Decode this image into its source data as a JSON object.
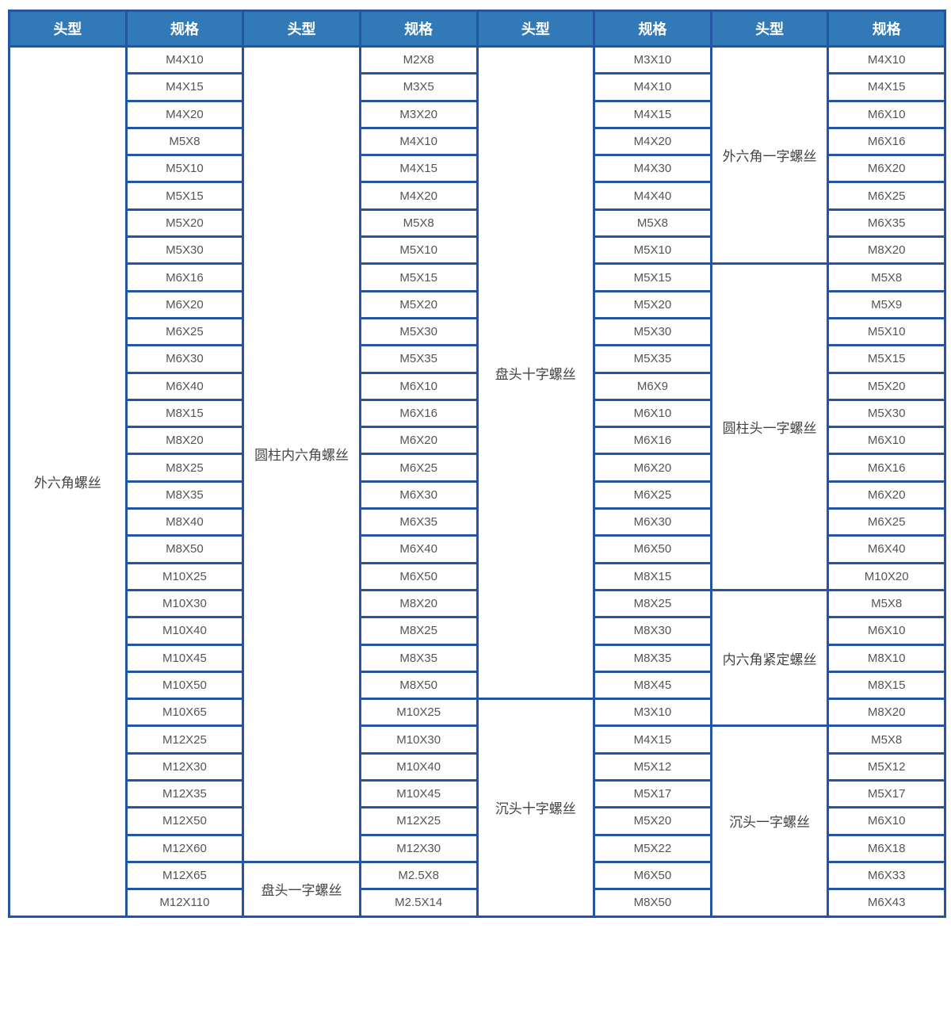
{
  "headers": [
    "头型",
    "规格",
    "头型",
    "规格",
    "头型",
    "规格",
    "头型",
    "规格"
  ],
  "colors": {
    "header_bg": "#3279b8",
    "border": "#2455a4"
  },
  "groups": [
    {
      "types": [
        {
          "name": "外六角螺丝",
          "rows": 32
        }
      ],
      "specs": [
        "M4X10",
        "M4X15",
        "M4X20",
        "M5X8",
        "M5X10",
        "M5X15",
        "M5X20",
        "M5X30",
        "M6X16",
        "M6X20",
        "M6X25",
        "M6X30",
        "M6X40",
        "M8X15",
        "M8X20",
        "M8X25",
        "M8X35",
        "M8X40",
        "M8X50",
        "M10X25",
        "M10X30",
        "M10X40",
        "M10X45",
        "M10X50",
        "M10X65",
        "M12X25",
        "M12X30",
        "M12X35",
        "M12X50",
        "M12X60",
        "M12X65",
        "M12X110"
      ]
    },
    {
      "types": [
        {
          "name": "圆柱内六角螺丝",
          "rows": 30
        },
        {
          "name": "盘头一字螺丝",
          "rows": 2
        }
      ],
      "specs": [
        "M2X8",
        "M3X5",
        "M3X20",
        "M4X10",
        "M4X15",
        "M4X20",
        "M5X8",
        "M5X10",
        "M5X15",
        "M5X20",
        "M5X30",
        "M5X35",
        "M6X10",
        "M6X16",
        "M6X20",
        "M6X25",
        "M6X30",
        "M6X35",
        "M6X40",
        "M6X50",
        "M8X20",
        "M8X25",
        "M8X35",
        "M8X50",
        "M10X25",
        "M10X30",
        "M10X40",
        "M10X45",
        "M12X25",
        "M12X30",
        "M2.5X8",
        "M2.5X14"
      ]
    },
    {
      "types": [
        {
          "name": "盘头十字螺丝",
          "rows": 24
        },
        {
          "name": "沉头十字螺丝",
          "rows": 8
        }
      ],
      "specs": [
        "M3X10",
        "M4X10",
        "M4X15",
        "M4X20",
        "M4X30",
        "M4X40",
        "M5X8",
        "M5X10",
        "M5X15",
        "M5X20",
        "M5X30",
        "M5X35",
        "M6X9",
        "M6X10",
        "M6X16",
        "M6X20",
        "M6X25",
        "M6X30",
        "M6X50",
        "M8X15",
        "M8X25",
        "M8X30",
        "M8X35",
        "M8X45",
        "M3X10",
        "M4X15",
        "M5X12",
        "M5X17",
        "M5X20",
        "M5X22",
        "M6X50",
        "M8X50"
      ]
    },
    {
      "types": [
        {
          "name": "外六角一字螺丝",
          "rows": 8
        },
        {
          "name": "圆柱头一字螺丝",
          "rows": 12
        },
        {
          "name": "内六角紧定螺丝",
          "rows": 5
        },
        {
          "name": "沉头一字螺丝",
          "rows": 7
        }
      ],
      "specs": [
        "M4X10",
        "M4X15",
        "M6X10",
        "M6X16",
        "M6X20",
        "M6X25",
        "M6X35",
        "M8X20",
        "M5X8",
        "M5X9",
        "M5X10",
        "M5X15",
        "M5X20",
        "M5X30",
        "M6X10",
        "M6X16",
        "M6X20",
        "M6X25",
        "M6X40",
        "M10X20",
        "M5X8",
        "M6X10",
        "M8X10",
        "M8X15",
        "M8X20",
        "M5X8",
        "M5X12",
        "M5X17",
        "M6X10",
        "M6X18",
        "M6X33",
        "M6X43"
      ]
    }
  ]
}
